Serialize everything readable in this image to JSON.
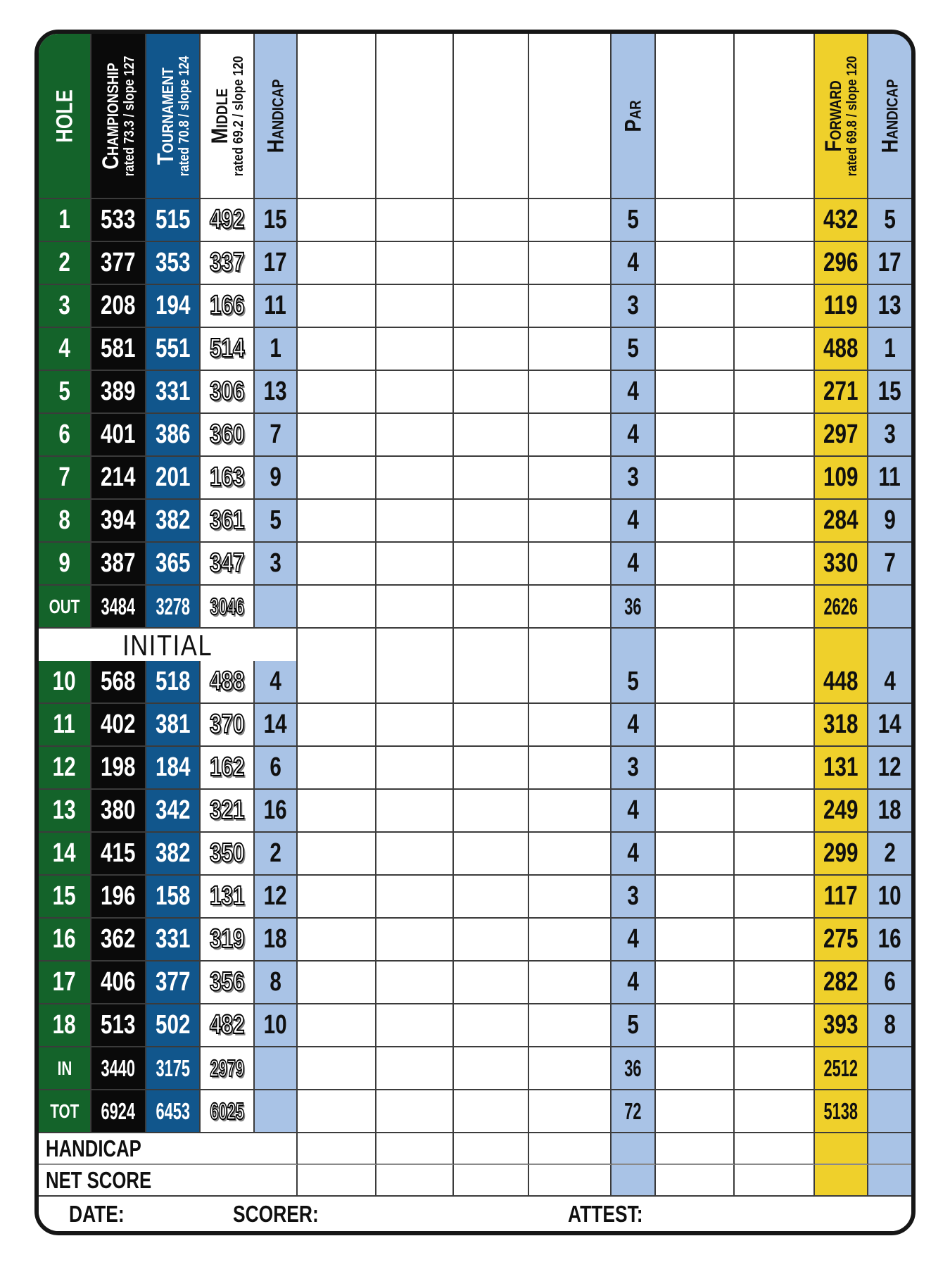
{
  "colors": {
    "hole_green": "#14632a",
    "championship_black": "#0a0a0a",
    "tournament_blue": "#11568c",
    "handicap_light_blue": "#a9c3e6",
    "forward_yellow": "#efd02b"
  },
  "header": {
    "hole": "HOLE",
    "championship": {
      "name": "Championship",
      "sub": "rated 73.3 / slope 127"
    },
    "tournament": {
      "name": "Tournament",
      "sub": "rated 70.8 / slope 124"
    },
    "middle": {
      "name": "Middle",
      "sub": "rated 69.2 / slope 120"
    },
    "handicap": "Handicap",
    "par": "Par",
    "forward": {
      "name": "Forward",
      "sub": "rated 69.8 / slope 120"
    },
    "handicap_forward": "Handicap"
  },
  "front_nine": [
    {
      "hole": "1",
      "champ": "533",
      "tourn": "515",
      "mid": "492",
      "hcp": "15",
      "par": "5",
      "fwd": "432",
      "fhcp": "5"
    },
    {
      "hole": "2",
      "champ": "377",
      "tourn": "353",
      "mid": "337",
      "hcp": "17",
      "par": "4",
      "fwd": "296",
      "fhcp": "17"
    },
    {
      "hole": "3",
      "champ": "208",
      "tourn": "194",
      "mid": "166",
      "hcp": "11",
      "par": "3",
      "fwd": "119",
      "fhcp": "13"
    },
    {
      "hole": "4",
      "champ": "581",
      "tourn": "551",
      "mid": "514",
      "hcp": "1",
      "par": "5",
      "fwd": "488",
      "fhcp": "1"
    },
    {
      "hole": "5",
      "champ": "389",
      "tourn": "331",
      "mid": "306",
      "hcp": "13",
      "par": "4",
      "fwd": "271",
      "fhcp": "15"
    },
    {
      "hole": "6",
      "champ": "401",
      "tourn": "386",
      "mid": "360",
      "hcp": "7",
      "par": "4",
      "fwd": "297",
      "fhcp": "3"
    },
    {
      "hole": "7",
      "champ": "214",
      "tourn": "201",
      "mid": "163",
      "hcp": "9",
      "par": "3",
      "fwd": "109",
      "fhcp": "11"
    },
    {
      "hole": "8",
      "champ": "394",
      "tourn": "382",
      "mid": "361",
      "hcp": "5",
      "par": "4",
      "fwd": "284",
      "fhcp": "9"
    },
    {
      "hole": "9",
      "champ": "387",
      "tourn": "365",
      "mid": "347",
      "hcp": "3",
      "par": "4",
      "fwd": "330",
      "fhcp": "7"
    }
  ],
  "out_row": {
    "hole": "OUT",
    "champ": "3484",
    "tourn": "3278",
    "mid": "3046",
    "par": "36",
    "fwd": "2626"
  },
  "initial_label": "INITIAL",
  "back_nine": [
    {
      "hole": "10",
      "champ": "568",
      "tourn": "518",
      "mid": "488",
      "hcp": "4",
      "par": "5",
      "fwd": "448",
      "fhcp": "4"
    },
    {
      "hole": "11",
      "champ": "402",
      "tourn": "381",
      "mid": "370",
      "hcp": "14",
      "par": "4",
      "fwd": "318",
      "fhcp": "14"
    },
    {
      "hole": "12",
      "champ": "198",
      "tourn": "184",
      "mid": "162",
      "hcp": "6",
      "par": "3",
      "fwd": "131",
      "fhcp": "12"
    },
    {
      "hole": "13",
      "champ": "380",
      "tourn": "342",
      "mid": "321",
      "hcp": "16",
      "par": "4",
      "fwd": "249",
      "fhcp": "18"
    },
    {
      "hole": "14",
      "champ": "415",
      "tourn": "382",
      "mid": "350",
      "hcp": "2",
      "par": "4",
      "fwd": "299",
      "fhcp": "2"
    },
    {
      "hole": "15",
      "champ": "196",
      "tourn": "158",
      "mid": "131",
      "hcp": "12",
      "par": "3",
      "fwd": "117",
      "fhcp": "10"
    },
    {
      "hole": "16",
      "champ": "362",
      "tourn": "331",
      "mid": "319",
      "hcp": "18",
      "par": "4",
      "fwd": "275",
      "fhcp": "16"
    },
    {
      "hole": "17",
      "champ": "406",
      "tourn": "377",
      "mid": "356",
      "hcp": "8",
      "par": "4",
      "fwd": "282",
      "fhcp": "6"
    },
    {
      "hole": "18",
      "champ": "513",
      "tourn": "502",
      "mid": "482",
      "hcp": "10",
      "par": "5",
      "fwd": "393",
      "fhcp": "8"
    }
  ],
  "in_row": {
    "hole": "IN",
    "champ": "3440",
    "tourn": "3175",
    "mid": "2979",
    "par": "36",
    "fwd": "2512"
  },
  "tot_row": {
    "hole": "TOT",
    "champ": "6924",
    "tourn": "6453",
    "mid": "6025",
    "par": "72",
    "fwd": "5138"
  },
  "handicap_label": "HANDICAP",
  "net_score_label": "NET SCORE",
  "footer": {
    "date": "DATE:",
    "scorer": "SCORER:",
    "attest": "ATTEST:"
  }
}
